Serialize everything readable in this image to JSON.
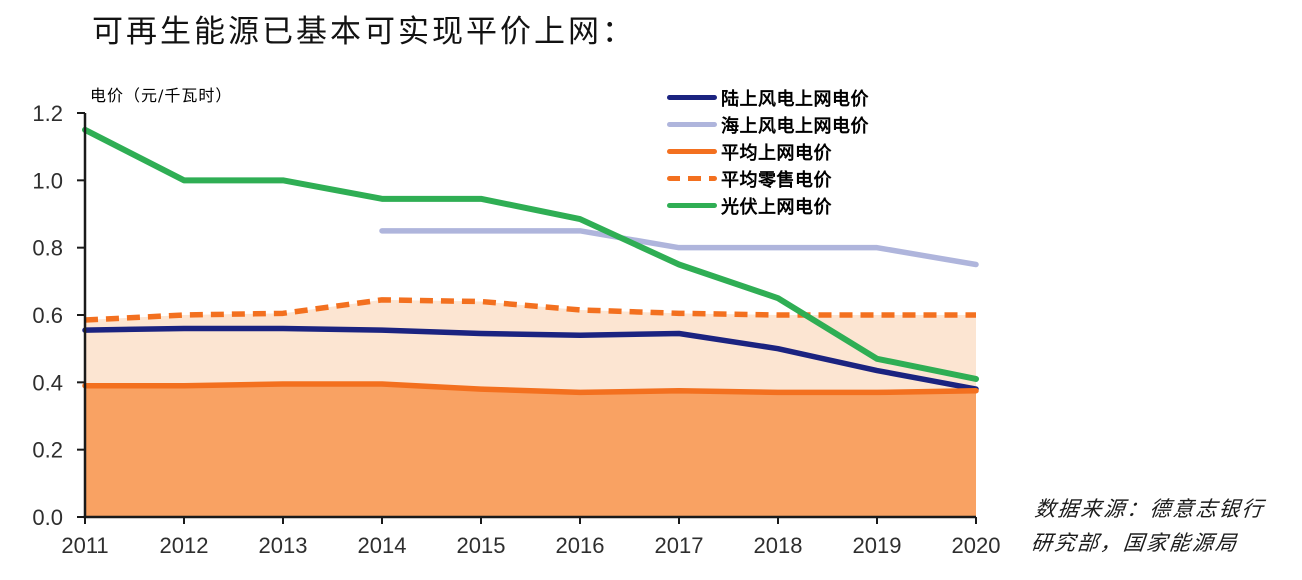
{
  "title": "可再生能源已基本可实现平价上网：",
  "y_axis_unit_label": "电价（元/千瓦时）",
  "source_note": {
    "line1": "数据来源：德意志银行",
    "line2": "研究部，国家能源局"
  },
  "chart_data": {
    "type": "line",
    "title": "可再生能源已基本可实现平价上网",
    "ylabel": "电价（元/千瓦时）",
    "x_categories": [
      "2011",
      "2012",
      "2013",
      "2014",
      "2015",
      "2016",
      "2017",
      "2018",
      "2019",
      "2020"
    ],
    "ylim": [
      0,
      1.2
    ],
    "yticks": [
      0,
      0.2,
      0.4,
      0.6,
      0.8,
      1.0,
      1.2
    ],
    "grid": false,
    "legend_position": "top-right",
    "axis_color": "#1a1a1a",
    "tick_label_color": "#2e2e2e",
    "series": [
      {
        "key": "onshore-wind",
        "name": "陆上风电上网电价",
        "color": "#1b2380",
        "style": "solid",
        "width": 5.5,
        "values": [
          0.555,
          0.56,
          0.56,
          0.555,
          0.545,
          0.54,
          0.545,
          0.5,
          0.435,
          0.38
        ]
      },
      {
        "key": "offshore-wind",
        "name": "海上风电上网电价",
        "color": "#afb5dc",
        "style": "solid",
        "width": 5.5,
        "values": [
          null,
          null,
          null,
          0.85,
          0.85,
          0.85,
          0.8,
          0.8,
          0.8,
          0.75
        ]
      },
      {
        "key": "avg-ongrid",
        "name": "平均上网电价",
        "color": "#f3701f",
        "style": "solid",
        "width": 5.5,
        "area_fill_below": "#f9a263",
        "values": [
          0.39,
          0.39,
          0.395,
          0.395,
          0.38,
          0.37,
          0.375,
          0.37,
          0.37,
          0.375
        ]
      },
      {
        "key": "retail",
        "name": "平均零售电价",
        "color": "#f3701f",
        "style": "dashed",
        "width": 5.5,
        "band_fill_to": "avg-ongrid",
        "band_color": "#fce5d2",
        "values": [
          0.585,
          0.6,
          0.605,
          0.645,
          0.64,
          0.615,
          0.605,
          0.6,
          0.6,
          0.6
        ]
      },
      {
        "key": "solar-pv",
        "name": "光伏上网电价",
        "color": "#2fae54",
        "style": "solid",
        "width": 6,
        "values": [
          1.15,
          1.0,
          1.0,
          0.945,
          0.945,
          0.885,
          0.75,
          0.65,
          0.47,
          0.41
        ]
      }
    ]
  }
}
